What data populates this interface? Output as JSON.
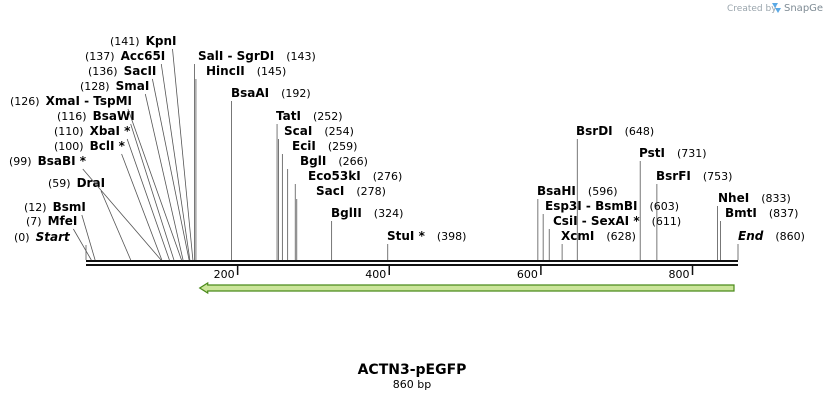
{
  "credit": {
    "prefix": "Created by",
    "brand": "SnapGene",
    "logo_icon": "snapgene-logo-icon"
  },
  "map": {
    "name": "ACTN3-pEGFP",
    "length_label": "860 bp",
    "length": 860,
    "ticks": [
      200,
      400,
      600,
      800
    ],
    "feature": {
      "start": 150,
      "end": 860,
      "direction": "reverse",
      "color": "#4a8a1a",
      "fill": "#cbe59a"
    }
  },
  "sites": [
    {
      "name": "Start",
      "pos": "(0)",
      "bp": 0,
      "kind": "end"
    },
    {
      "name": "MfeI",
      "pos": "(7)",
      "bp": 7
    },
    {
      "name": "BsmI",
      "pos": "(12)",
      "bp": 12
    },
    {
      "name": "DraI",
      "pos": "(59)",
      "bp": 59
    },
    {
      "name": "BsaBI *",
      "pos": "(99)",
      "bp": 99
    },
    {
      "name": "BclI *",
      "pos": "(100)",
      "bp": 100
    },
    {
      "name": "XbaI *",
      "pos": "(110)",
      "bp": 110
    },
    {
      "name": "BsaWI",
      "pos": "(116)",
      "bp": 116
    },
    {
      "name": "XmaI  - TspMI",
      "pos": "(126)",
      "bp": 126
    },
    {
      "name": "SmaI",
      "pos": "(128)",
      "bp": 128
    },
    {
      "name": "SacII",
      "pos": "(136)",
      "bp": 136
    },
    {
      "name": "Acc65I",
      "pos": "(137)",
      "bp": 137
    },
    {
      "name": "KpnI",
      "pos": "(141)",
      "bp": 141
    },
    {
      "name": "SalI  - SgrDI",
      "pos": "(143)",
      "bp": 143
    },
    {
      "name": "HincII",
      "pos": "(145)",
      "bp": 145
    },
    {
      "name": "BsaAI",
      "pos": "(192)",
      "bp": 192
    },
    {
      "name": "TatI",
      "pos": "(252)",
      "bp": 252
    },
    {
      "name": "ScaI",
      "pos": "(254)",
      "bp": 254
    },
    {
      "name": "EciI",
      "pos": "(259)",
      "bp": 259
    },
    {
      "name": "BglI",
      "pos": "(266)",
      "bp": 266
    },
    {
      "name": "Eco53kI",
      "pos": "(276)",
      "bp": 276
    },
    {
      "name": "SacI",
      "pos": "(278)",
      "bp": 278
    },
    {
      "name": "BglII",
      "pos": "(324)",
      "bp": 324
    },
    {
      "name": "StuI *",
      "pos": "(398)",
      "bp": 398
    },
    {
      "name": "BsaHI",
      "pos": "(596)",
      "bp": 596
    },
    {
      "name": "Esp3I  - BsmBI",
      "pos": "(603)",
      "bp": 603
    },
    {
      "name": "CsiI  - SexAI *",
      "pos": "(611)",
      "bp": 611
    },
    {
      "name": "XcmI",
      "pos": "(628)",
      "bp": 628
    },
    {
      "name": "BsrDI",
      "pos": "(648)",
      "bp": 648
    },
    {
      "name": "PstI",
      "pos": "(731)",
      "bp": 731
    },
    {
      "name": "BsrFI",
      "pos": "(753)",
      "bp": 753
    },
    {
      "name": "NheI",
      "pos": "(833)",
      "bp": 833
    },
    {
      "name": "BmtI",
      "pos": "(837)",
      "bp": 837
    },
    {
      "name": "End",
      "pos": "(860)",
      "bp": 860,
      "kind": "end"
    }
  ]
}
